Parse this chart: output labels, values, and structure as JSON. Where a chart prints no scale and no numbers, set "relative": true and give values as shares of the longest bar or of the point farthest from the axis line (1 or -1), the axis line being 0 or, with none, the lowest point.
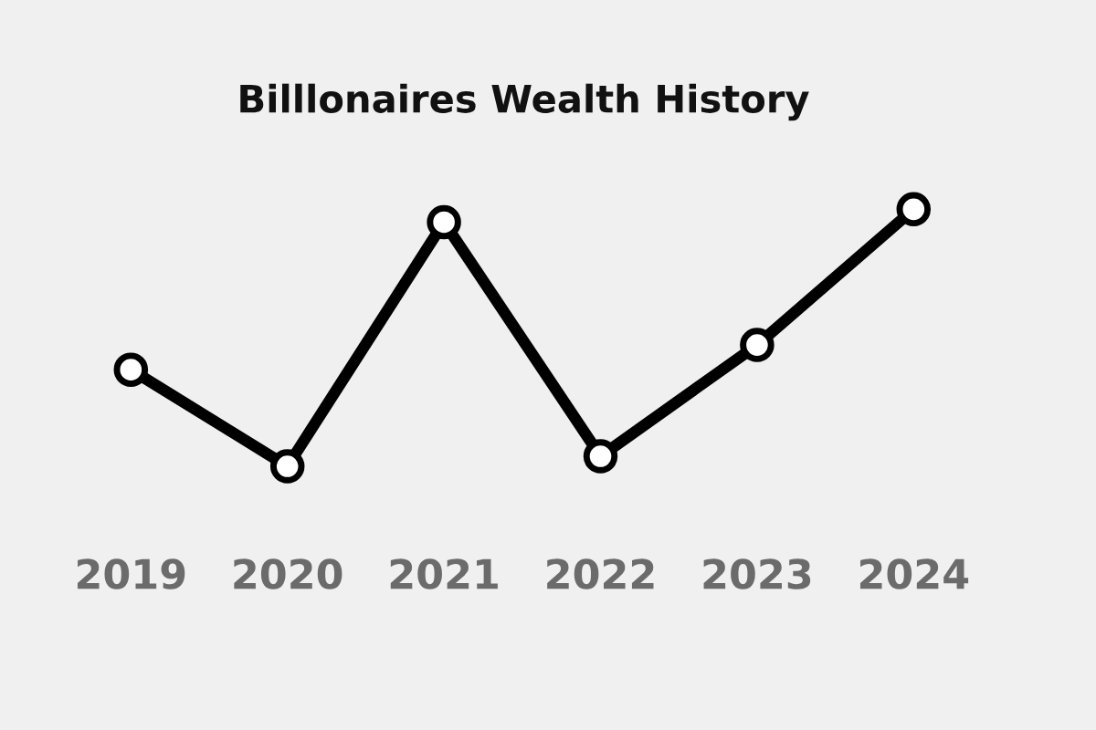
{
  "chart_data": {
    "type": "line",
    "title": "Billlonaires Wealth History",
    "categories": [
      "2019",
      "2020",
      "2021",
      "2022",
      "2023",
      "2024"
    ],
    "relative": true,
    "series": [
      {
        "color": "#000000",
        "values": [
          0.376,
          0,
          0.95,
          0.039,
          0.472,
          1
        ]
      }
    ],
    "marker": "circle",
    "line_style": "solid",
    "grid": false,
    "legend": false
  }
}
